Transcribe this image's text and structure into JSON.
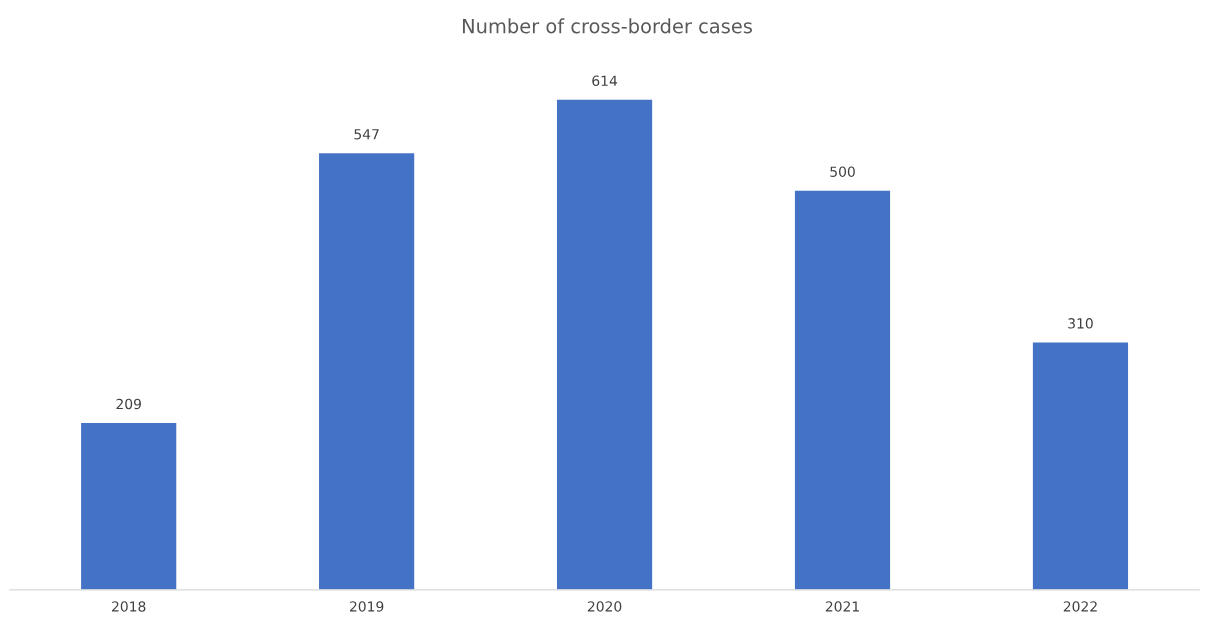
{
  "chart_data": {
    "type": "bar",
    "title": "Number of cross-border cases",
    "categories": [
      "2018",
      "2019",
      "2020",
      "2021",
      "2022"
    ],
    "values": [
      209,
      547,
      614,
      500,
      310
    ],
    "color": "#4472c4",
    "data_labels": true,
    "grid": false,
    "legend": false,
    "tick_labels": "x"
  }
}
